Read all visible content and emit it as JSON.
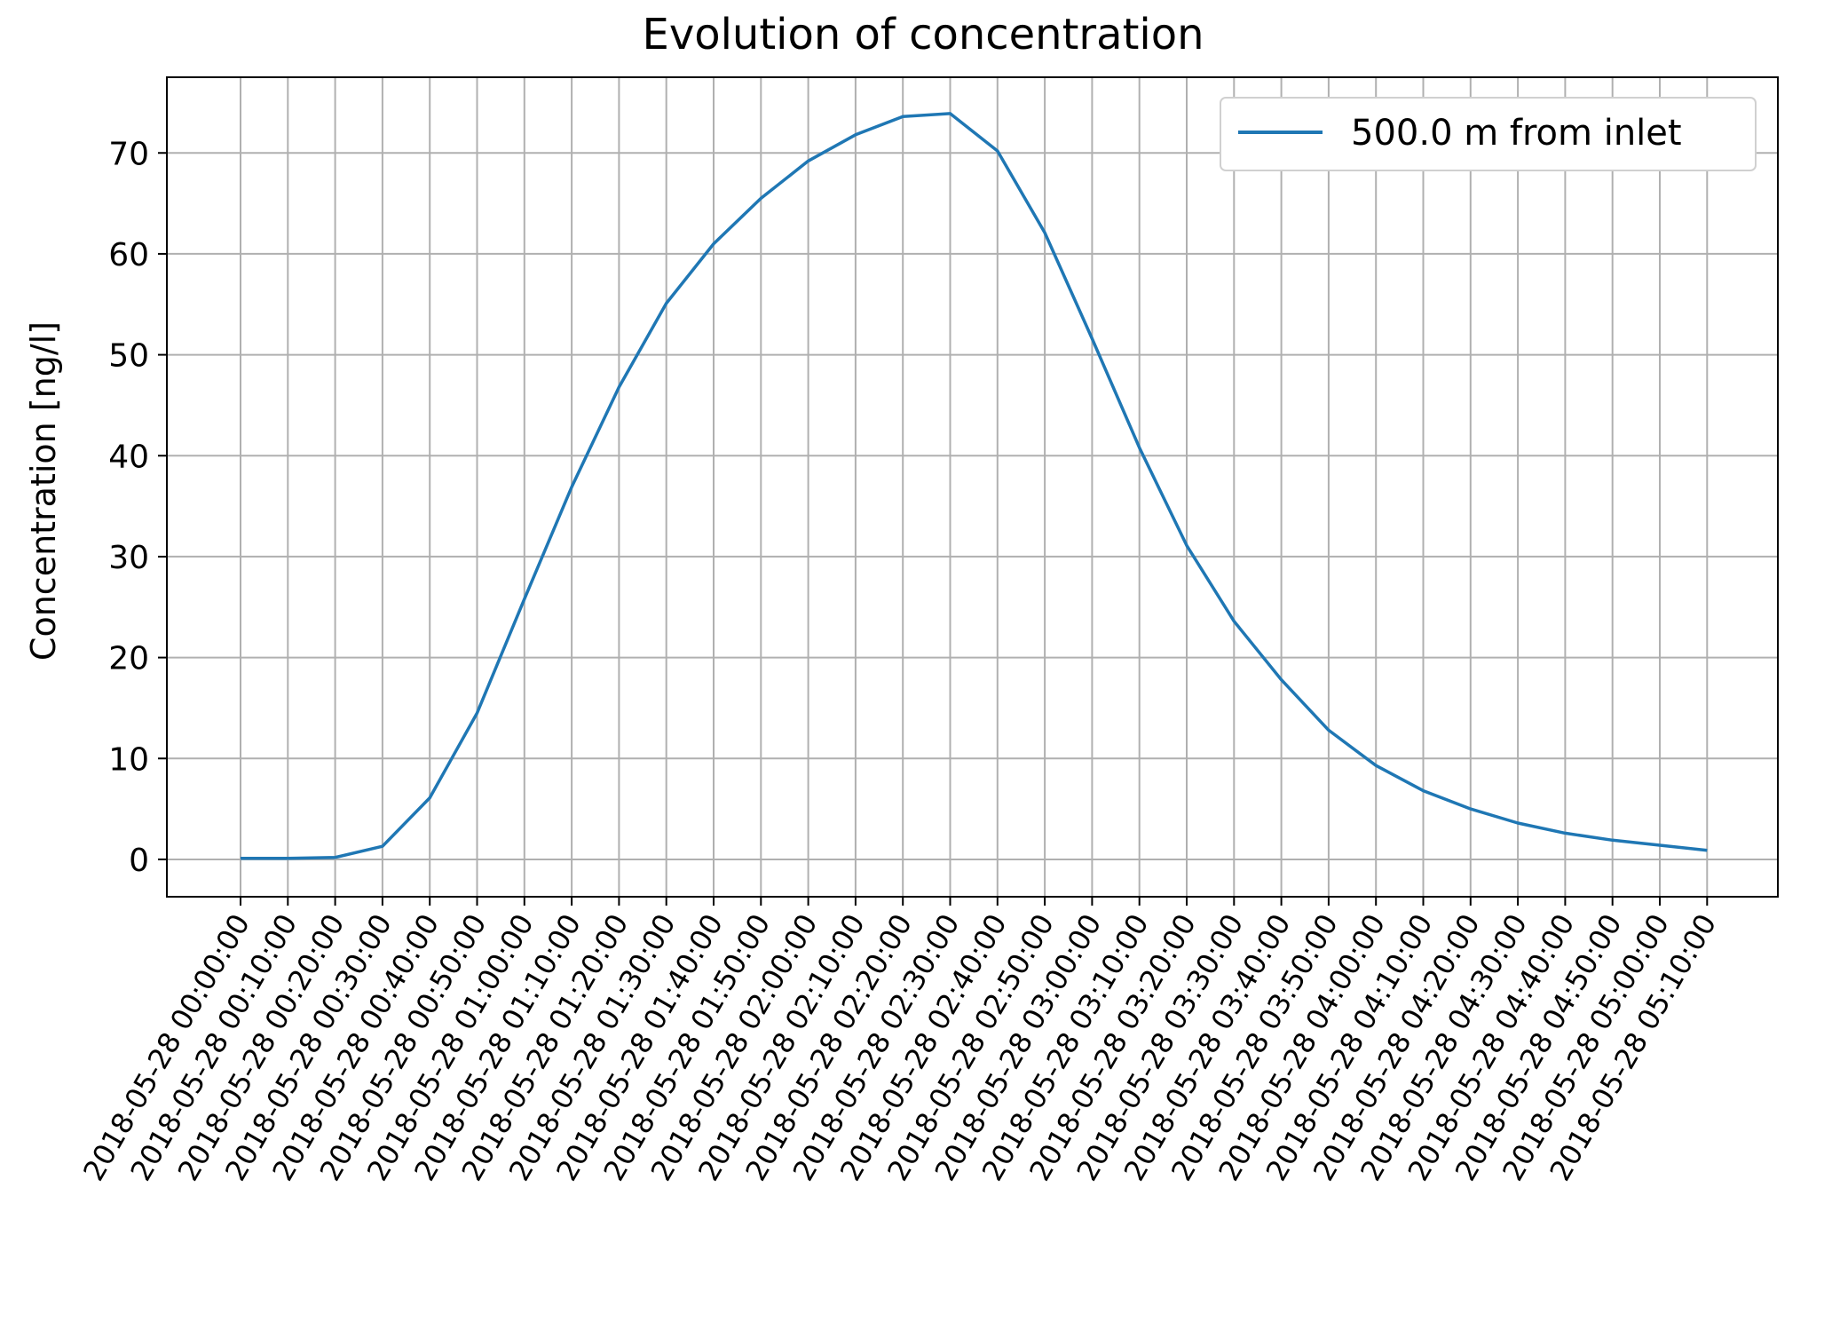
{
  "chart_data": {
    "type": "line",
    "title": "Evolution of concentration",
    "xlabel": "",
    "ylabel": "Concentration [ng/l]",
    "ylim": [
      -3.7,
      77.5
    ],
    "yticks": [
      0,
      10,
      20,
      30,
      40,
      50,
      60,
      70
    ],
    "grid": true,
    "legend_placement": "top-right",
    "x_tick_labels": [
      "2018-05-28 00:00:00",
      "2018-05-28 00:10:00",
      "2018-05-28 00:20:00",
      "2018-05-28 00:30:00",
      "2018-05-28 00:40:00",
      "2018-05-28 00:50:00",
      "2018-05-28 01:00:00",
      "2018-05-28 01:10:00",
      "2018-05-28 01:20:00",
      "2018-05-28 01:30:00",
      "2018-05-28 01:40:00",
      "2018-05-28 01:50:00",
      "2018-05-28 02:00:00",
      "2018-05-28 02:10:00",
      "2018-05-28 02:20:00",
      "2018-05-28 02:30:00",
      "2018-05-28 02:40:00",
      "2018-05-28 02:50:00",
      "2018-05-28 03:00:00",
      "2018-05-28 03:10:00",
      "2018-05-28 03:20:00",
      "2018-05-28 03:30:00",
      "2018-05-28 03:40:00",
      "2018-05-28 03:50:00",
      "2018-05-28 04:00:00",
      "2018-05-28 04:10:00",
      "2018-05-28 04:20:00",
      "2018-05-28 04:30:00",
      "2018-05-28 04:40:00",
      "2018-05-28 04:50:00",
      "2018-05-28 05:00:00",
      "2018-05-28 05:10:00"
    ],
    "series": [
      {
        "name": "500.0 m from inlet",
        "color": "#1f77b4",
        "x": [
          "2018-05-28 00:00:00",
          "2018-05-28 00:10:00",
          "2018-05-28 00:20:00",
          "2018-05-28 00:30:00",
          "2018-05-28 00:40:00",
          "2018-05-28 00:50:00",
          "2018-05-28 01:00:00",
          "2018-05-28 01:10:00",
          "2018-05-28 01:20:00",
          "2018-05-28 01:30:00",
          "2018-05-28 01:40:00",
          "2018-05-28 01:50:00",
          "2018-05-28 02:00:00",
          "2018-05-28 02:10:00",
          "2018-05-28 02:20:00",
          "2018-05-28 02:30:00",
          "2018-05-28 02:40:00",
          "2018-05-28 02:50:00",
          "2018-05-28 03:00:00",
          "2018-05-28 03:10:00",
          "2018-05-28 03:20:00",
          "2018-05-28 03:30:00",
          "2018-05-28 03:40:00",
          "2018-05-28 03:50:00",
          "2018-05-28 04:00:00",
          "2018-05-28 04:10:00",
          "2018-05-28 04:20:00",
          "2018-05-28 04:30:00",
          "2018-05-28 04:40:00",
          "2018-05-28 04:50:00",
          "2018-05-28 05:00:00",
          "2018-05-28 05:10:00"
        ],
        "values": [
          0.1,
          0.1,
          0.2,
          1.3,
          6.1,
          14.5,
          25.8,
          36.9,
          46.8,
          55.1,
          61.0,
          65.5,
          69.2,
          71.8,
          73.6,
          73.9,
          70.2,
          62.1,
          51.6,
          40.8,
          31.1,
          23.6,
          17.8,
          12.8,
          9.3,
          6.8,
          5.0,
          3.6,
          2.6,
          1.9,
          1.4,
          0.9
        ]
      }
    ]
  }
}
